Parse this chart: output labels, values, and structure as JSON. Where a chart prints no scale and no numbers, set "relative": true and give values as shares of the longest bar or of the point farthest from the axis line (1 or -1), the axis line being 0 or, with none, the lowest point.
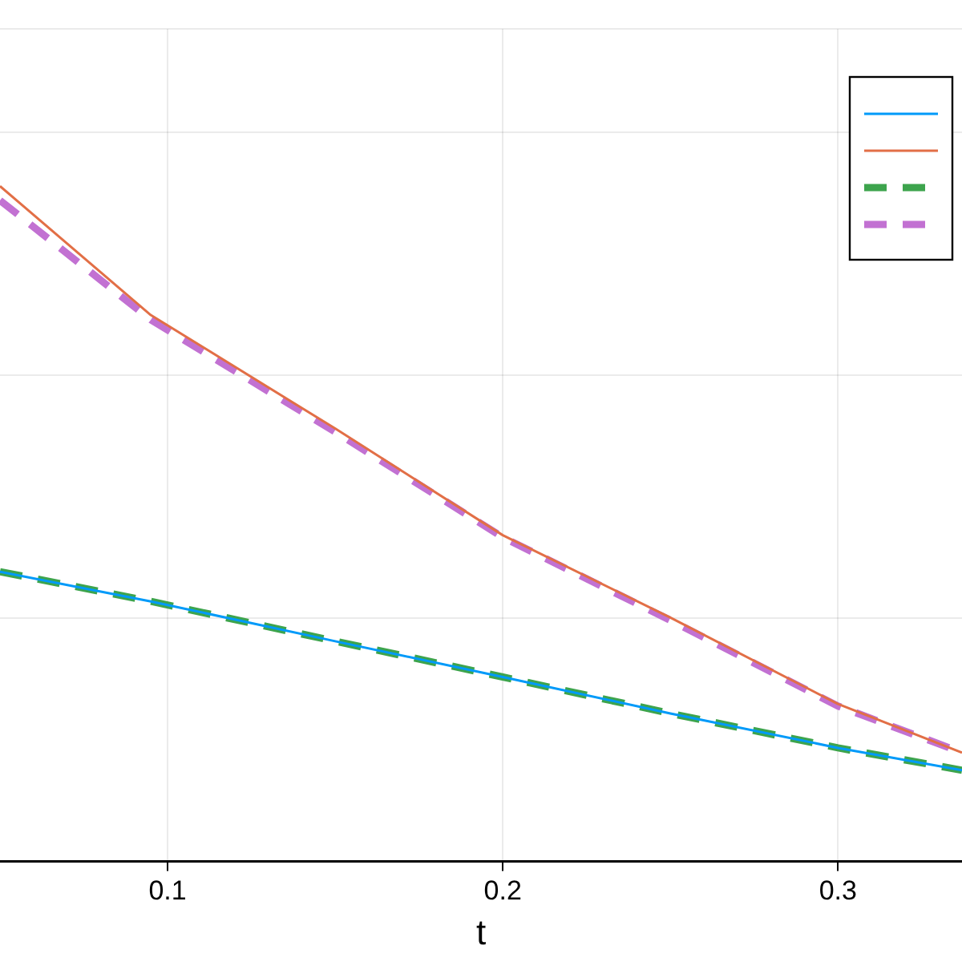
{
  "chart_data": {
    "type": "line",
    "xlabel": "t",
    "relative": true,
    "x": [
      0.05,
      0.095,
      0.15,
      0.2,
      0.25,
      0.3,
      0.337
    ],
    "xlim": [
      0.05,
      0.337
    ],
    "xticks": [
      0.1,
      0.2,
      0.3
    ],
    "series": [
      {
        "color": "#009af9",
        "line_style": "solid",
        "values": [
          0.429,
          0.385,
          0.326,
          0.273,
          0.219,
          0.168,
          0.135
        ]
      },
      {
        "color": "#e26f46",
        "line_style": "solid",
        "values": [
          1.0,
          0.809,
          0.641,
          0.483,
          0.361,
          0.233,
          0.161
        ]
      },
      {
        "color": "#3da44d",
        "line_style": "dashed",
        "values": [
          0.429,
          0.385,
          0.326,
          0.273,
          0.219,
          0.168,
          0.135
        ]
      },
      {
        "color": "#c271d2",
        "line_style": "dashed",
        "values": [
          0.979,
          0.802,
          0.636,
          0.48,
          0.357,
          0.23,
          0.161
        ]
      }
    ],
    "grid": true,
    "marker": "none"
  }
}
